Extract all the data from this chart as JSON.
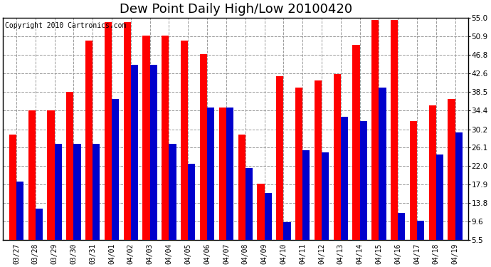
{
  "title": "Dew Point Daily High/Low 20100420",
  "copyright": "Copyright 2010 Cartronics.com",
  "dates": [
    "03/27",
    "03/28",
    "03/29",
    "03/30",
    "03/31",
    "04/01",
    "04/02",
    "04/03",
    "04/04",
    "04/05",
    "04/06",
    "04/07",
    "04/08",
    "04/09",
    "04/10",
    "04/11",
    "04/12",
    "04/13",
    "04/14",
    "04/15",
    "04/16",
    "04/17",
    "04/18",
    "04/19"
  ],
  "highs": [
    29.0,
    34.4,
    34.4,
    38.5,
    50.0,
    54.0,
    54.0,
    51.0,
    51.0,
    50.0,
    47.0,
    35.0,
    29.0,
    18.0,
    42.0,
    39.5,
    41.0,
    42.5,
    49.0,
    54.5,
    54.5,
    32.0,
    35.5,
    37.0
  ],
  "lows": [
    18.5,
    12.5,
    27.0,
    27.0,
    27.0,
    37.0,
    44.5,
    44.5,
    27.0,
    22.5,
    35.0,
    35.0,
    21.5,
    16.0,
    9.5,
    25.5,
    25.0,
    33.0,
    32.0,
    39.5,
    11.5,
    9.8,
    24.5,
    29.5
  ],
  "high_color": "#ff0000",
  "low_color": "#0000cc",
  "background_color": "#ffffff",
  "grid_color": "#999999",
  "ylim_min": 5.5,
  "ylim_max": 55.0,
  "yticks": [
    5.5,
    9.6,
    13.8,
    17.9,
    22.0,
    26.1,
    30.2,
    34.4,
    38.5,
    42.6,
    46.8,
    50.9,
    55.0
  ],
  "title_fontsize": 13,
  "copyright_fontsize": 7,
  "bar_width": 0.38,
  "figsize": [
    6.9,
    3.75
  ],
  "dpi": 100
}
